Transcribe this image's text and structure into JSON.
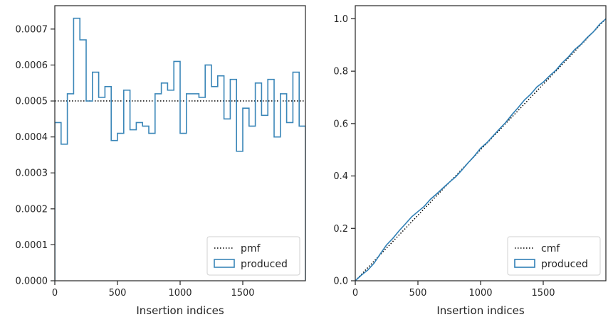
{
  "chart_data": [
    {
      "type": "histogram-step",
      "xlabel": "Insertion indices",
      "ylabel": "",
      "xlim": [
        0,
        2000
      ],
      "ylim": [
        0,
        0.000765
      ],
      "xticks": [
        0,
        500,
        1000,
        1500
      ],
      "xtick_labels": [
        "0",
        "500",
        "1000",
        "1500"
      ],
      "yticks": [
        0,
        0.0001,
        0.0002,
        0.0003,
        0.0004,
        0.0005,
        0.0006,
        0.0007
      ],
      "ytick_labels": [
        "0.0000",
        "0.0001",
        "0.0002",
        "0.0003",
        "0.0004",
        "0.0005",
        "0.0006",
        "0.0007"
      ],
      "legend_position": "lower-right",
      "series": [
        {
          "name": "pmf",
          "kind": "reference-line",
          "style": "dotted",
          "color": "#000000",
          "x": [
            0,
            2000
          ],
          "y": [
            0.0005,
            0.0005
          ]
        },
        {
          "name": "produced",
          "kind": "step-histogram",
          "color": "#3a86b8",
          "bin_width": 50,
          "bin_starts": [
            0,
            50,
            100,
            150,
            200,
            250,
            300,
            350,
            400,
            450,
            500,
            550,
            600,
            650,
            700,
            750,
            800,
            850,
            900,
            950,
            1000,
            1050,
            1100,
            1150,
            1200,
            1250,
            1300,
            1350,
            1400,
            1450,
            1500,
            1550,
            1600,
            1650,
            1700,
            1750,
            1800,
            1850,
            1900,
            1950
          ],
          "values": [
            0.00044,
            0.00038,
            0.00052,
            0.00073,
            0.00067,
            0.0005,
            0.00058,
            0.00051,
            0.00054,
            0.00039,
            0.00041,
            0.00053,
            0.00042,
            0.00044,
            0.00043,
            0.00041,
            0.00052,
            0.00055,
            0.00053,
            0.00061,
            0.00041,
            0.00052,
            0.00052,
            0.00051,
            0.0006,
            0.00054,
            0.00057,
            0.00045,
            0.00056,
            0.00036,
            0.00048,
            0.00043,
            0.00055,
            0.00046,
            0.00056,
            0.0004,
            0.00052,
            0.00044,
            0.00058,
            0.00043
          ]
        }
      ]
    },
    {
      "type": "line",
      "xlabel": "Insertion indices",
      "ylabel": "",
      "xlim": [
        0,
        2000
      ],
      "ylim": [
        0,
        1.05
      ],
      "xticks": [
        0,
        500,
        1000,
        1500
      ],
      "xtick_labels": [
        "0",
        "500",
        "1000",
        "1500"
      ],
      "yticks": [
        0,
        0.2,
        0.4,
        0.6,
        0.8,
        1.0
      ],
      "ytick_labels": [
        "0.0",
        "0.2",
        "0.4",
        "0.6",
        "0.8",
        "1.0"
      ],
      "legend_position": "lower-right",
      "series": [
        {
          "name": "cmf",
          "kind": "reference-line",
          "style": "dotted",
          "color": "#000000",
          "x": [
            0,
            2000
          ],
          "y": [
            0,
            1.0
          ]
        },
        {
          "name": "produced",
          "kind": "cumulative",
          "color": "#2f7fb5",
          "x": [
            0,
            50,
            100,
            150,
            200,
            250,
            300,
            350,
            400,
            450,
            500,
            550,
            600,
            650,
            700,
            750,
            800,
            850,
            900,
            950,
            1000,
            1050,
            1100,
            1150,
            1200,
            1250,
            1300,
            1350,
            1400,
            1450,
            1500,
            1550,
            1600,
            1650,
            1700,
            1750,
            1800,
            1850,
            1900,
            1950,
            2000
          ],
          "y": [
            0,
            0.022,
            0.041,
            0.067,
            0.103,
            0.137,
            0.162,
            0.191,
            0.217,
            0.244,
            0.264,
            0.284,
            0.311,
            0.332,
            0.354,
            0.376,
            0.396,
            0.422,
            0.45,
            0.476,
            0.506,
            0.527,
            0.553,
            0.579,
            0.604,
            0.634,
            0.661,
            0.69,
            0.712,
            0.74,
            0.758,
            0.782,
            0.803,
            0.831,
            0.854,
            0.882,
            0.902,
            0.928,
            0.95,
            0.979,
            1.0
          ]
        }
      ]
    }
  ]
}
